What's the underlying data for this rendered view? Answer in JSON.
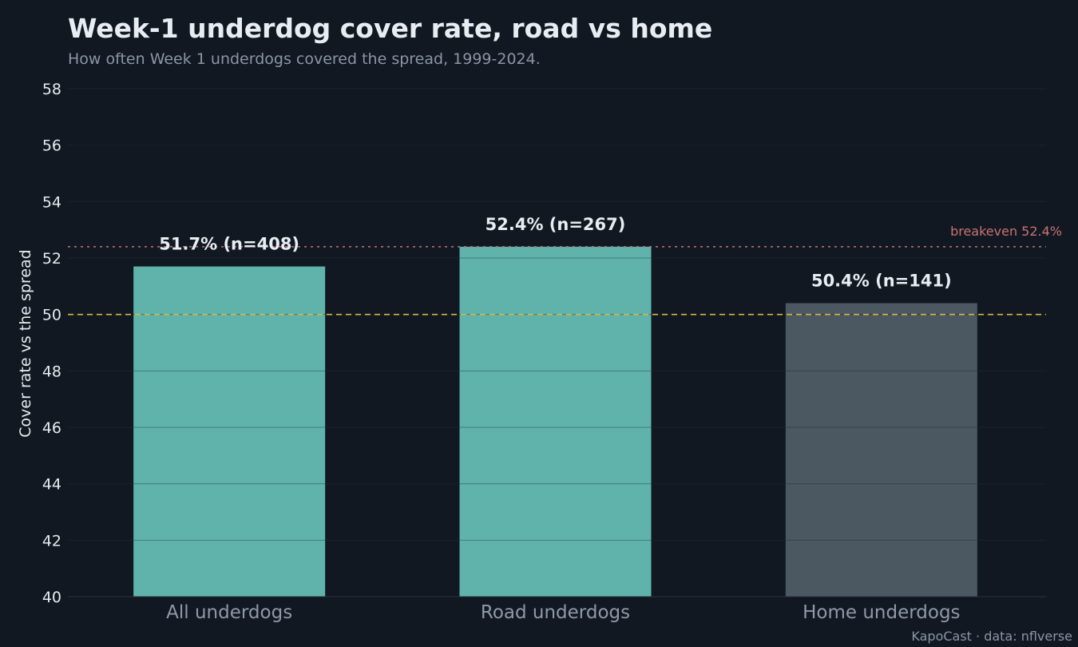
{
  "chart_data": {
    "type": "bar",
    "title": "Week-1 underdog cover rate, road vs home",
    "subtitle": "How often Week 1 underdogs covered the spread, 1999-2024.",
    "xlabel": "",
    "ylabel": "Cover rate vs the spread",
    "ylim": [
      40,
      58
    ],
    "yticks": [
      40,
      42,
      44,
      46,
      48,
      50,
      52,
      54,
      56,
      58
    ],
    "grid": true,
    "categories": [
      "All underdogs",
      "Road underdogs",
      "Home underdogs"
    ],
    "values": [
      51.7,
      52.4,
      50.4
    ],
    "bar_labels": [
      "51.7%  (n=408)",
      "52.4%  (n=267)",
      "50.4%  (n=141)"
    ],
    "bar_colors": [
      "#5fb3ab",
      "#5fb3ab",
      "#4b5862"
    ],
    "reference_lines": [
      {
        "value": 52.4,
        "label": "breakeven 52.4%",
        "color": "#c97272",
        "style": "dotted"
      },
      {
        "value": 50,
        "label": "",
        "color": "#d9b442",
        "style": "dashed"
      }
    ]
  },
  "footer": "KapoCast · data: nflverse"
}
